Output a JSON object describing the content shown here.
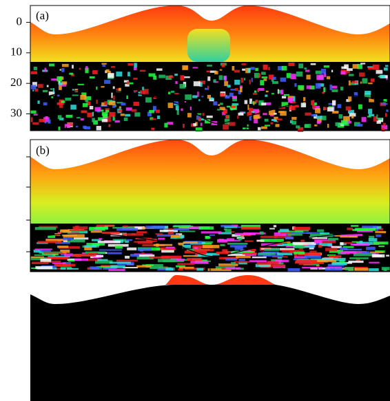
{
  "chart_data": [
    {
      "type": "heatmap",
      "title": "(a)",
      "ylim": [
        -5.5,
        35.5
      ],
      "yticks": [
        0,
        10,
        20,
        30
      ],
      "y_inverted": true
    },
    {
      "type": "heatmap",
      "title": "(b)"
    }
  ]
}
